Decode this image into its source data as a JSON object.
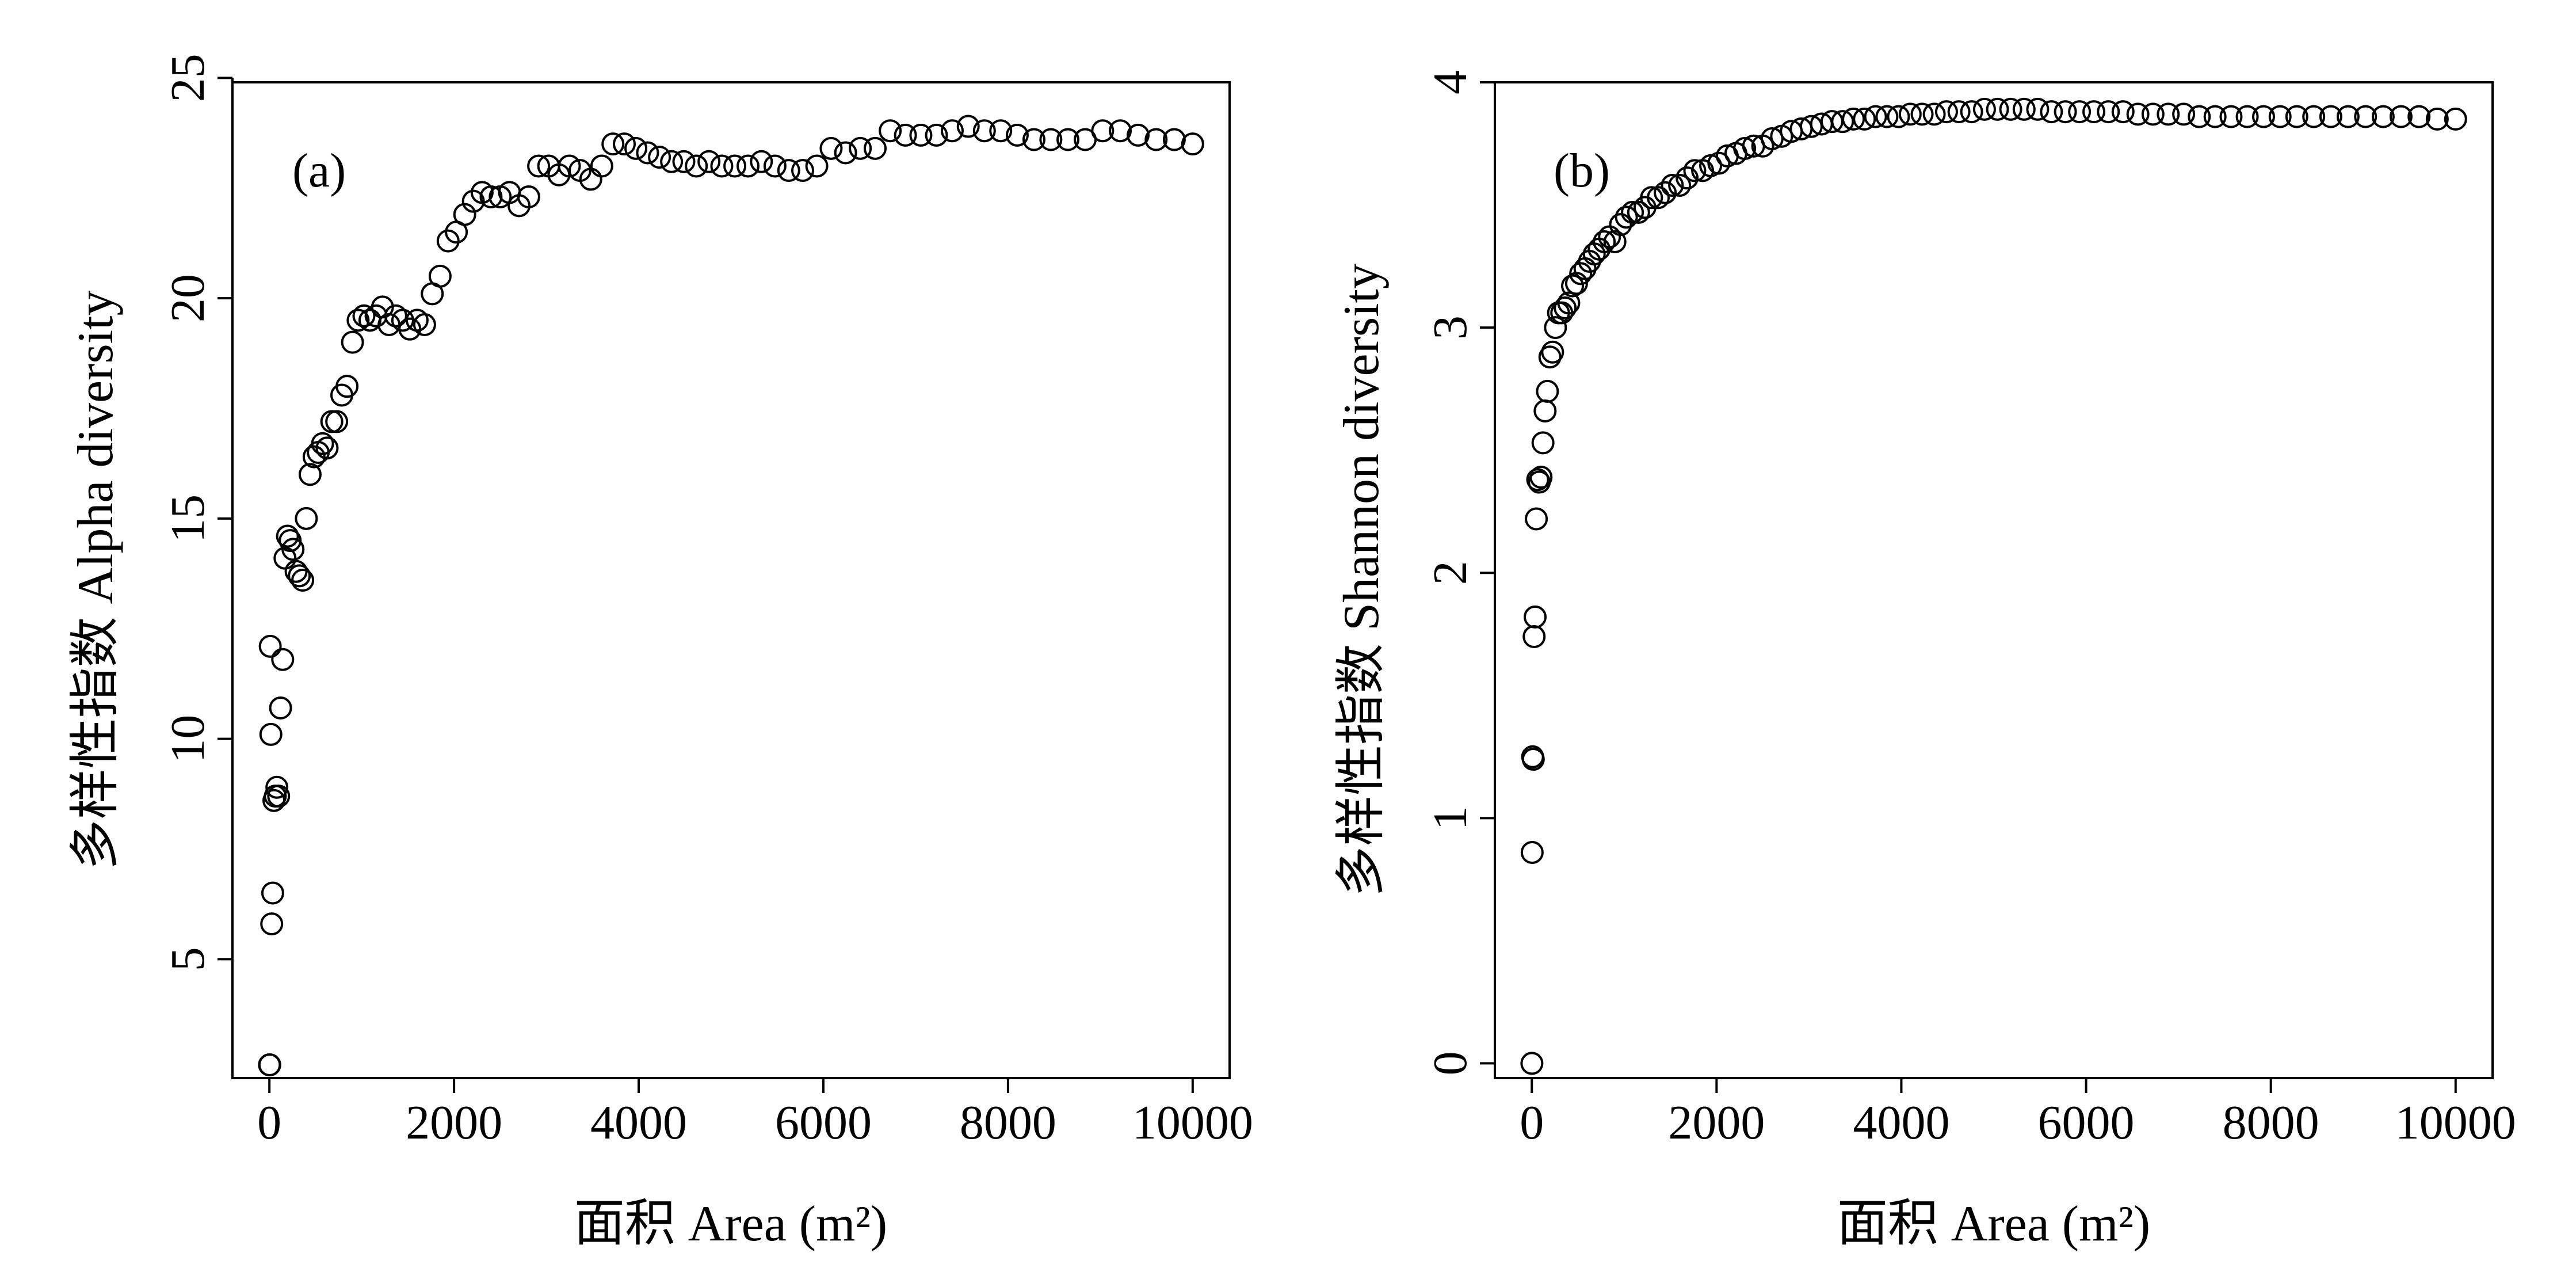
{
  "figure": {
    "xlabel": "面积 Area (m²)"
  },
  "chart_data": [
    {
      "type": "scatter",
      "panel_label": "(a)",
      "xlabel": "面积 Area (m²)",
      "ylabel": "多样性指数 Alpha diversity",
      "xlim": [
        -400,
        10400
      ],
      "ylim": [
        2.3,
        24.9
      ],
      "xticks": [
        0,
        2000,
        4000,
        6000,
        8000,
        10000
      ],
      "yticks": [
        5,
        10,
        15,
        20,
        25
      ],
      "grid": false,
      "legend": "none",
      "x": [
        1,
        4,
        9,
        16,
        25,
        36,
        49,
        64,
        81,
        100,
        121,
        144,
        169,
        196,
        225,
        256,
        289,
        324,
        361,
        400,
        441,
        484,
        529,
        576,
        625,
        676,
        729,
        784,
        841,
        900,
        961,
        1024,
        1089,
        1156,
        1225,
        1296,
        1369,
        1444,
        1521,
        1600,
        1681,
        1764,
        1849,
        1936,
        2025,
        2116,
        2209,
        2304,
        2401,
        2500,
        2601,
        2704,
        2809,
        2916,
        3025,
        3136,
        3249,
        3364,
        3481,
        3600,
        3721,
        3844,
        3969,
        4096,
        4225,
        4356,
        4489,
        4624,
        4761,
        4900,
        5041,
        5184,
        5329,
        5476,
        5625,
        5776,
        5929,
        6084,
        6241,
        6400,
        6561,
        6724,
        6889,
        7056,
        7225,
        7396,
        7569,
        7744,
        7921,
        8100,
        8281,
        8464,
        8649,
        8836,
        9025,
        9216,
        9409,
        9604,
        9801,
        10000
      ],
      "y": [
        2.6,
        2.6,
        12.1,
        10.1,
        5.8,
        6.5,
        8.6,
        8.7,
        8.9,
        8.7,
        10.7,
        11.8,
        14.1,
        14.6,
        14.5,
        14.3,
        13.8,
        13.7,
        13.6,
        15.0,
        16.0,
        16.4,
        16.5,
        16.7,
        16.6,
        17.2,
        17.2,
        17.8,
        18.0,
        19.0,
        19.5,
        19.6,
        19.5,
        19.6,
        19.8,
        19.4,
        19.6,
        19.5,
        19.3,
        19.5,
        19.4,
        20.1,
        20.5,
        21.3,
        21.5,
        21.9,
        22.2,
        22.4,
        22.3,
        22.3,
        22.4,
        22.1,
        22.3,
        23.0,
        23.0,
        22.8,
        23.0,
        22.9,
        22.7,
        23.0,
        23.5,
        23.5,
        23.4,
        23.3,
        23.2,
        23.1,
        23.1,
        23.0,
        23.1,
        23.0,
        23.0,
        23.0,
        23.1,
        23.0,
        22.9,
        22.9,
        23.0,
        23.4,
        23.3,
        23.4,
        23.4,
        23.8,
        23.7,
        23.7,
        23.7,
        23.8,
        23.9,
        23.8,
        23.8,
        23.7,
        23.6,
        23.6,
        23.6,
        23.6,
        23.8,
        23.8,
        23.7,
        23.6,
        23.6,
        23.5
      ]
    },
    {
      "type": "scatter",
      "panel_label": "(b)",
      "xlabel": "面积 Area (m²)",
      "ylabel": "多样性指数 Shannon diversity",
      "xlim": [
        -400,
        10400
      ],
      "ylim": [
        -0.06,
        4.0
      ],
      "xticks": [
        0,
        2000,
        4000,
        6000,
        8000,
        10000
      ],
      "yticks": [
        0,
        1,
        2,
        3,
        4
      ],
      "grid": false,
      "legend": "none",
      "x": [
        1,
        4,
        9,
        16,
        25,
        36,
        49,
        64,
        81,
        100,
        121,
        144,
        169,
        196,
        225,
        256,
        289,
        324,
        361,
        400,
        441,
        484,
        529,
        576,
        625,
        676,
        729,
        784,
        841,
        900,
        961,
        1024,
        1089,
        1156,
        1225,
        1296,
        1369,
        1444,
        1521,
        1600,
        1681,
        1764,
        1849,
        1936,
        2025,
        2116,
        2209,
        2304,
        2401,
        2500,
        2601,
        2704,
        2809,
        2916,
        3025,
        3136,
        3249,
        3364,
        3481,
        3600,
        3721,
        3844,
        3969,
        4096,
        4225,
        4356,
        4489,
        4624,
        4761,
        4900,
        5041,
        5184,
        5329,
        5476,
        5625,
        5776,
        5929,
        6084,
        6241,
        6400,
        6561,
        6724,
        6889,
        7056,
        7225,
        7396,
        7569,
        7744,
        7921,
        8100,
        8281,
        8464,
        8649,
        8836,
        9025,
        9216,
        9409,
        9604,
        9801,
        10000
      ],
      "y": [
        0.0,
        0.86,
        1.25,
        1.24,
        1.74,
        1.82,
        2.22,
        2.38,
        2.37,
        2.39,
        2.53,
        2.66,
        2.74,
        2.88,
        2.9,
        3.0,
        3.06,
        3.06,
        3.08,
        3.1,
        3.17,
        3.18,
        3.22,
        3.24,
        3.27,
        3.3,
        3.32,
        3.35,
        3.37,
        3.35,
        3.42,
        3.45,
        3.47,
        3.47,
        3.49,
        3.53,
        3.53,
        3.55,
        3.58,
        3.58,
        3.61,
        3.64,
        3.64,
        3.66,
        3.67,
        3.7,
        3.71,
        3.73,
        3.74,
        3.74,
        3.77,
        3.78,
        3.8,
        3.81,
        3.82,
        3.83,
        3.84,
        3.84,
        3.85,
        3.85,
        3.86,
        3.86,
        3.86,
        3.87,
        3.87,
        3.87,
        3.88,
        3.88,
        3.88,
        3.89,
        3.89,
        3.89,
        3.89,
        3.89,
        3.88,
        3.88,
        3.88,
        3.88,
        3.88,
        3.88,
        3.87,
        3.87,
        3.87,
        3.87,
        3.86,
        3.86,
        3.86,
        3.86,
        3.86,
        3.86,
        3.86,
        3.86,
        3.86,
        3.86,
        3.86,
        3.86,
        3.86,
        3.86,
        3.85,
        3.85
      ]
    }
  ]
}
